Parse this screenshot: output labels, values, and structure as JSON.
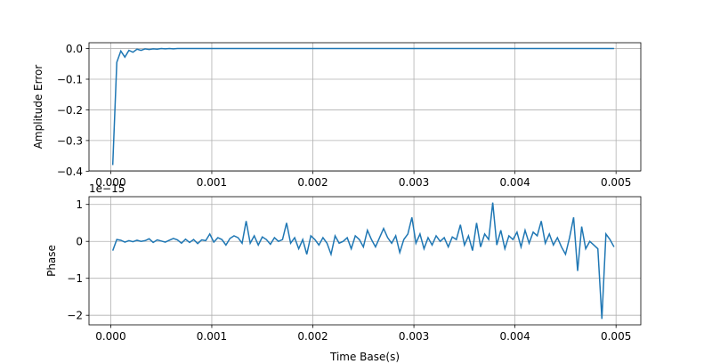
{
  "chart_data": [
    {
      "type": "line",
      "y_label": "Amplitude Error",
      "color": "#1f77b4",
      "grid": true,
      "xlim": [
        -0.000215,
        0.005245
      ],
      "ylim": [
        -0.399,
        0.019
      ],
      "xticks": [
        {
          "value": 0,
          "label": "0.000"
        },
        {
          "value": 0.001,
          "label": "0.001"
        },
        {
          "value": 0.002,
          "label": "0.002"
        },
        {
          "value": 0.003,
          "label": "0.003"
        },
        {
          "value": 0.004,
          "label": "0.004"
        },
        {
          "value": 0.005,
          "label": "0.005"
        }
      ],
      "yticks": [
        {
          "value": 0,
          "label": "0.0"
        },
        {
          "value": -0.1,
          "label": "−0.1"
        },
        {
          "value": -0.2,
          "label": "−0.2"
        },
        {
          "value": -0.3,
          "label": "−0.3"
        },
        {
          "value": -0.4,
          "label": "−0.4"
        }
      ],
      "x": [
        2e-05,
        6e-05,
        0.0001,
        0.00014,
        0.00018,
        0.00022,
        0.00026,
        0.0003,
        0.00034,
        0.00038,
        0.00042,
        0.00046,
        0.0005,
        0.00054,
        0.00058,
        0.00062,
        0.00066,
        0.0007,
        0.00074,
        0.00078,
        0.00082,
        0.00086,
        0.0009,
        0.00094,
        0.00098,
        0.00102,
        0.00106,
        0.0011,
        0.00114,
        0.00118,
        0.00122,
        0.00126,
        0.0013,
        0.00134,
        0.00138,
        0.00142,
        0.00146,
        0.0015,
        0.00154,
        0.00158,
        0.00162,
        0.00166,
        0.0017,
        0.00174,
        0.00178,
        0.00182,
        0.00186,
        0.0019,
        0.00194,
        0.00198,
        0.00202,
        0.00206,
        0.0021,
        0.00214,
        0.00218,
        0.00222,
        0.00226,
        0.0023,
        0.00234,
        0.00238,
        0.00242,
        0.00246,
        0.0025,
        0.00254,
        0.00258,
        0.00262,
        0.00266,
        0.0027,
        0.00274,
        0.00278,
        0.00282,
        0.00286,
        0.0029,
        0.00294,
        0.00298,
        0.00302,
        0.00306,
        0.0031,
        0.00314,
        0.00318,
        0.00322,
        0.00326,
        0.0033,
        0.00334,
        0.00338,
        0.00342,
        0.00346,
        0.0035,
        0.00354,
        0.00358,
        0.00362,
        0.00366,
        0.0037,
        0.00374,
        0.00378,
        0.00382,
        0.00386,
        0.0039,
        0.00394,
        0.00398,
        0.00402,
        0.00406,
        0.0041,
        0.00414,
        0.00418,
        0.00422,
        0.00426,
        0.0043,
        0.00434,
        0.00438,
        0.00442,
        0.00446,
        0.0045,
        0.00454,
        0.00458,
        0.00462,
        0.00466,
        0.0047,
        0.00474,
        0.00478,
        0.00482,
        0.00486,
        0.0049,
        0.00494,
        0.00498
      ],
      "values": [
        -0.38,
        -0.045,
        -0.008,
        -0.028,
        -0.006,
        -0.012,
        -0.002,
        -0.006,
        -0.001,
        -0.003,
        -0.001,
        -0.002,
        0,
        -0.001,
        0,
        -0.001,
        0,
        0,
        0,
        0,
        0,
        0,
        0,
        0,
        0,
        0,
        0,
        0,
        0,
        0,
        0,
        0,
        0,
        0,
        0,
        0,
        0,
        0,
        0,
        0,
        0,
        0,
        0,
        0,
        0,
        0,
        0,
        0,
        0,
        0,
        0,
        0,
        0,
        0,
        0,
        0,
        0,
        0,
        0,
        0,
        0,
        0,
        0,
        0,
        0,
        0,
        0,
        0,
        0,
        0,
        0,
        0,
        0,
        0,
        0,
        0,
        0,
        0,
        0,
        0,
        0,
        0,
        0,
        0,
        0,
        0,
        0,
        0,
        0,
        0,
        0,
        0,
        0,
        0,
        0,
        0,
        0,
        0,
        0,
        0,
        0,
        0,
        0,
        0,
        0,
        0,
        0,
        0,
        0,
        0,
        0,
        0,
        0,
        0,
        0,
        0,
        0,
        0,
        0,
        0,
        0,
        0,
        0,
        0,
        0
      ]
    },
    {
      "type": "line",
      "y_label": "Phase",
      "x_label": "Time Base(s)",
      "offset_text": "1e−15",
      "color": "#1f77b4",
      "grid": true,
      "xlim": [
        -0.000215,
        0.005245
      ],
      "ylim": [
        -2.26,
        1.21
      ],
      "xticks": [
        {
          "value": 0,
          "label": "0.000"
        },
        {
          "value": 0.001,
          "label": "0.001"
        },
        {
          "value": 0.002,
          "label": "0.002"
        },
        {
          "value": 0.003,
          "label": "0.003"
        },
        {
          "value": 0.004,
          "label": "0.004"
        },
        {
          "value": 0.005,
          "label": "0.005"
        }
      ],
      "yticks": [
        1,
        0,
        {
          "value": -1,
          "label": "−1"
        },
        {
          "value": -2,
          "label": "−2"
        }
      ],
      "x": [
        2e-05,
        6e-05,
        0.0001,
        0.00014,
        0.00018,
        0.00022,
        0.00026,
        0.0003,
        0.00034,
        0.00038,
        0.00042,
        0.00046,
        0.0005,
        0.00054,
        0.00058,
        0.00062,
        0.00066,
        0.0007,
        0.00074,
        0.00078,
        0.00082,
        0.00086,
        0.0009,
        0.00094,
        0.00098,
        0.00102,
        0.00106,
        0.0011,
        0.00114,
        0.00118,
        0.00122,
        0.00126,
        0.0013,
        0.00134,
        0.00138,
        0.00142,
        0.00146,
        0.0015,
        0.00154,
        0.00158,
        0.00162,
        0.00166,
        0.0017,
        0.00174,
        0.00178,
        0.00182,
        0.00186,
        0.0019,
        0.00194,
        0.00198,
        0.00202,
        0.00206,
        0.0021,
        0.00214,
        0.00218,
        0.00222,
        0.00226,
        0.0023,
        0.00234,
        0.00238,
        0.00242,
        0.00246,
        0.0025,
        0.00254,
        0.00258,
        0.00262,
        0.00266,
        0.0027,
        0.00274,
        0.00278,
        0.00282,
        0.00286,
        0.0029,
        0.00294,
        0.00298,
        0.00302,
        0.00306,
        0.0031,
        0.00314,
        0.00318,
        0.00322,
        0.00326,
        0.0033,
        0.00334,
        0.00338,
        0.00342,
        0.00346,
        0.0035,
        0.00354,
        0.00358,
        0.00362,
        0.00366,
        0.0037,
        0.00374,
        0.00378,
        0.00382,
        0.00386,
        0.0039,
        0.00394,
        0.00398,
        0.00402,
        0.00406,
        0.0041,
        0.00414,
        0.00418,
        0.00422,
        0.00426,
        0.0043,
        0.00434,
        0.00438,
        0.00442,
        0.00446,
        0.0045,
        0.00454,
        0.00458,
        0.00462,
        0.00466,
        0.0047,
        0.00474,
        0.00478,
        0.00482,
        0.00486,
        0.0049,
        0.00494,
        0.00498
      ],
      "values": [
        -0.25,
        0.05,
        0.03,
        -0.02,
        0.02,
        -0.01,
        0.03,
        0,
        0.02,
        0.07,
        -0.03,
        0.04,
        0.01,
        -0.02,
        0.03,
        0.08,
        0.04,
        -0.05,
        0.06,
        -0.03,
        0.05,
        -0.06,
        0.04,
        0.02,
        0.2,
        -0.02,
        0.1,
        0.05,
        -0.1,
        0.08,
        0.15,
        0.1,
        -0.05,
        0.55,
        -0.05,
        0.15,
        -0.1,
        0.12,
        0.05,
        -0.08,
        0.1,
        0,
        0.05,
        0.5,
        -0.05,
        0.1,
        -0.2,
        0.05,
        -0.35,
        0.15,
        0.05,
        -0.1,
        0.1,
        -0.05,
        -0.35,
        0.15,
        -0.05,
        0,
        0.1,
        -0.2,
        0.15,
        0.05,
        -0.15,
        0.3,
        0.05,
        -0.15,
        0.1,
        0.35,
        0.1,
        -0.05,
        0.15,
        -0.3,
        0.05,
        0.2,
        0.65,
        -0.05,
        0.2,
        -0.2,
        0.1,
        -0.1,
        0.15,
        0,
        0.1,
        -0.15,
        0.12,
        0.05,
        0.45,
        -0.1,
        0.15,
        -0.25,
        0.5,
        -0.15,
        0.2,
        0.05,
        1.05,
        -0.1,
        0.3,
        -0.2,
        0.15,
        0.05,
        0.25,
        -0.15,
        0.3,
        -0.05,
        0.25,
        0.15,
        0.55,
        -0.05,
        0.2,
        -0.1,
        0.1,
        -0.15,
        -0.35,
        0.1,
        0.65,
        -0.8,
        0.4,
        -0.2,
        0,
        -0.1,
        -0.2,
        -2.1,
        0.2,
        0.05,
        -0.15
      ]
    }
  ]
}
